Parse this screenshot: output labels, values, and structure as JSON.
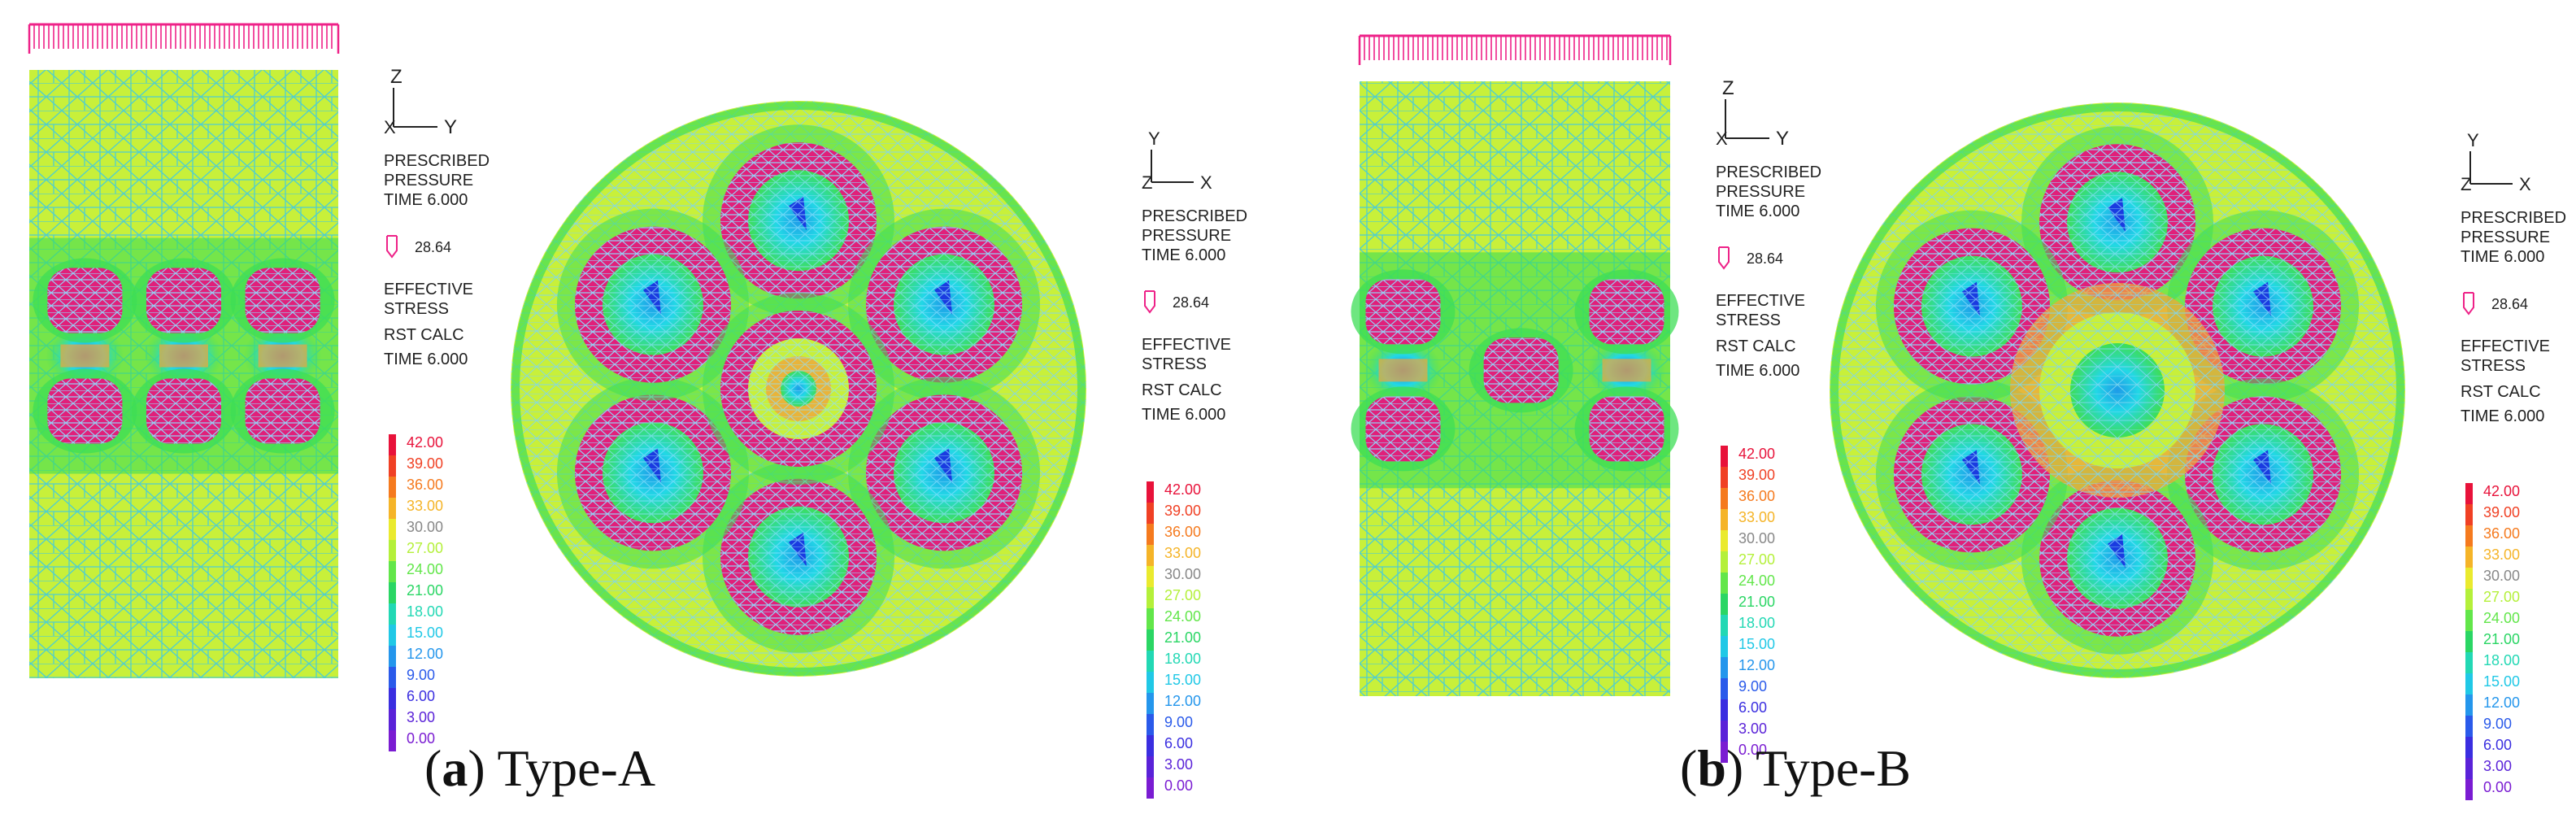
{
  "figure": {
    "colors": {
      "mesh_base": "#c8f03a",
      "mesh_line": "#33ccee",
      "pink": "#e0207a",
      "load_arrow": "#ee2288",
      "cyan_core": "#22d4ee",
      "green_ring": "#3ede55",
      "orange_patch": "#f0a53c",
      "label_text": "#222222"
    },
    "legend_scale": {
      "values": [
        "42.00",
        "39.00",
        "36.00",
        "33.00",
        "30.00",
        "27.00",
        "24.00",
        "21.00",
        "18.00",
        "15.00",
        "12.00",
        "9.00",
        "6.00",
        "3.00",
        "0.00"
      ],
      "colors": [
        "#e8123a",
        "#f04024",
        "#f57a1e",
        "#f5b428",
        "#eaea2e",
        "#b4f03a",
        "#62e64a",
        "#2ad664",
        "#22d8b4",
        "#20c8e6",
        "#2496ec",
        "#2a5aea",
        "#3a2ee0",
        "#5a22d8",
        "#7a1cd2"
      ]
    },
    "panels": [
      {
        "label": "a",
        "type": "Type-A",
        "side_view": {
          "axis_vertical": "Z",
          "axis_horizontal": "Y",
          "annotation": [
            "PRESCRIBED",
            "PRESSURE",
            "TIME 6.000",
            "28.64",
            "EFFECTIVE",
            "STRESS",
            "RST CALC",
            "TIME 6.000"
          ]
        },
        "top_view": {
          "axis_vertical": "Y",
          "axis_horizontal": "X",
          "annotation": [
            "PRESCRIBED",
            "PRESSURE",
            "TIME 6.000",
            "28.64",
            "EFFECTIVE",
            "STRESS",
            "RST CALC",
            "TIME 6.000"
          ],
          "center_pile": true
        }
      },
      {
        "label": "b",
        "type": "Type-B",
        "side_view": {
          "axis_vertical": "Z",
          "axis_horizontal": "Y",
          "annotation": [
            "PRESCRIBED",
            "PRESSURE",
            "TIME 6.000",
            "28.64",
            "EFFECTIVE",
            "STRESS",
            "RST CALC",
            "TIME 6.000"
          ]
        },
        "top_view": {
          "axis_vertical": "Y",
          "axis_horizontal": "X",
          "annotation": [
            "PRESCRIBED",
            "PRESSURE",
            "TIME 6.000",
            "28.64",
            "EFFECTIVE",
            "STRESS",
            "RST CALC",
            "TIME 6.000"
          ],
          "center_pile": false
        }
      }
    ]
  }
}
